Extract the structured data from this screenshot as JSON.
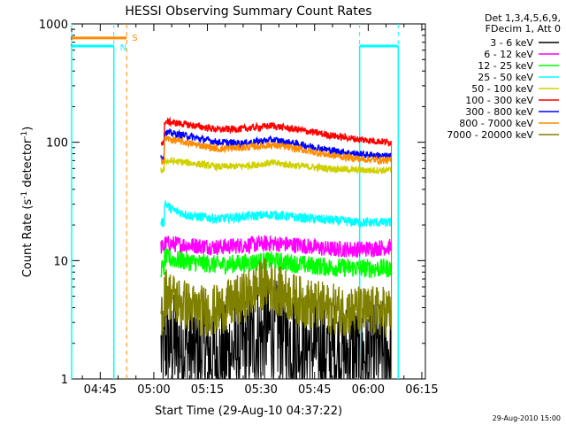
{
  "chart_data": {
    "type": "line",
    "title": "HESSI Observing Summary Count Rates",
    "xlabel": "Start Time (29-Aug-10 04:37:22)",
    "ylabel_main": "Count Rate (s",
    "ylabel_sup1": "-1",
    "ylabel_mid": " detector",
    "ylabel_sup2": "-1",
    "ylabel_end": ")",
    "x_range_min": [
      277,
      376
    ],
    "y_range": [
      1,
      1000
    ],
    "y_scale": "log",
    "x_ticks": [
      {
        "min": 285,
        "label": "04:45"
      },
      {
        "min": 300,
        "label": "05:00"
      },
      {
        "min": 315,
        "label": "05:15"
      },
      {
        "min": 330,
        "label": "05:30"
      },
      {
        "min": 345,
        "label": "05:45"
      },
      {
        "min": 360,
        "label": "06:00"
      },
      {
        "min": 375,
        "label": "06:15"
      }
    ],
    "y_ticks": [
      {
        "value": 1,
        "label": "1"
      },
      {
        "value": 10,
        "label": "10"
      },
      {
        "value": 100,
        "label": "100"
      },
      {
        "value": 1000,
        "label": "1000"
      }
    ],
    "legend": {
      "placement": "right",
      "header": [
        "Det 1,3,4,5,6,9,",
        "FDecim 1, Att 0"
      ]
    },
    "data_window_min": [
      302,
      366.5
    ],
    "series": [
      {
        "name": "3 - 6 keV",
        "color": "#000000",
        "points": [
          [
            303,
            2.0
          ],
          [
            310,
            1.8
          ],
          [
            318,
            1.5
          ],
          [
            325,
            1.9
          ],
          [
            333,
            2.6
          ],
          [
            341,
            2.0
          ],
          [
            349,
            1.7
          ],
          [
            358,
            1.6
          ],
          [
            366,
            1.7
          ]
        ],
        "noise": 0.45
      },
      {
        "name": "6 - 12 keV",
        "color": "#ff00ff",
        "points": [
          [
            303,
            14
          ],
          [
            310,
            13.5
          ],
          [
            318,
            13
          ],
          [
            325,
            13.5
          ],
          [
            333,
            14
          ],
          [
            341,
            13.5
          ],
          [
            349,
            12.5
          ],
          [
            358,
            12.5
          ],
          [
            366,
            13
          ]
        ],
        "noise": 0.07
      },
      {
        "name": "12 - 25 keV",
        "color": "#00ff00",
        "points": [
          [
            303,
            10.5
          ],
          [
            310,
            9.8
          ],
          [
            318,
            9.2
          ],
          [
            325,
            9.5
          ],
          [
            333,
            10
          ],
          [
            341,
            9.3
          ],
          [
            349,
            8.8
          ],
          [
            358,
            8.6
          ],
          [
            366,
            8.6
          ]
        ],
        "noise": 0.08
      },
      {
        "name": "25 - 50 keV",
        "color": "#00ffff",
        "points": [
          [
            303,
            31
          ],
          [
            305,
            27
          ],
          [
            310,
            24
          ],
          [
            318,
            22.5
          ],
          [
            325,
            23.5
          ],
          [
            333,
            24.5
          ],
          [
            341,
            23
          ],
          [
            349,
            22
          ],
          [
            358,
            21
          ],
          [
            366,
            21
          ]
        ],
        "noise": 0.04
      },
      {
        "name": "50 - 100 keV",
        "color": "#d0d000",
        "points": [
          [
            303,
            70
          ],
          [
            310,
            67
          ],
          [
            318,
            62
          ],
          [
            325,
            63
          ],
          [
            333,
            67
          ],
          [
            341,
            63
          ],
          [
            349,
            60
          ],
          [
            358,
            58
          ],
          [
            366,
            58
          ]
        ],
        "noise": 0.03
      },
      {
        "name": "100 - 300 keV",
        "color": "#ff0000",
        "points": [
          [
            303,
            150
          ],
          [
            310,
            140
          ],
          [
            318,
            128
          ],
          [
            325,
            130
          ],
          [
            333,
            138
          ],
          [
            341,
            127
          ],
          [
            349,
            115
          ],
          [
            358,
            105
          ],
          [
            366,
            100
          ]
        ],
        "noise": 0.03
      },
      {
        "name": "300 - 800 keV",
        "color": "#0000ff",
        "points": [
          [
            303,
            122
          ],
          [
            310,
            112
          ],
          [
            318,
            100
          ],
          [
            325,
            98
          ],
          [
            333,
            105
          ],
          [
            341,
            96
          ],
          [
            349,
            86
          ],
          [
            358,
            79
          ],
          [
            366,
            76
          ]
        ],
        "noise": 0.03
      },
      {
        "name": "800 - 7000 keV",
        "color": "#ff8c00",
        "points": [
          [
            303,
            108
          ],
          [
            310,
            98
          ],
          [
            318,
            88
          ],
          [
            325,
            90
          ],
          [
            333,
            95
          ],
          [
            341,
            87
          ],
          [
            349,
            78
          ],
          [
            358,
            72
          ],
          [
            366,
            70
          ]
        ],
        "noise": 0.03
      },
      {
        "name": "7000 - 20000 keV",
        "color": "#808000",
        "points": [
          [
            303,
            5.5
          ],
          [
            307,
            4.5
          ],
          [
            312,
            3.8
          ],
          [
            318,
            3.8
          ],
          [
            325,
            4.8
          ],
          [
            331,
            6.5
          ],
          [
            336,
            5.3
          ],
          [
            341,
            4.5
          ],
          [
            349,
            3.9
          ],
          [
            358,
            3.7
          ],
          [
            366,
            3.7
          ]
        ],
        "noise": 0.22
      }
    ],
    "saa_level": 650,
    "night_level": 760,
    "saa_segments": [
      [
        277,
        288.8
      ],
      [
        357.6,
        368.4
      ]
    ],
    "night_segments": [
      [
        277,
        292.4
      ]
    ],
    "saa_lines": [
      277,
      288.8,
      357.6,
      368.4
    ],
    "night_lines": [
      292.4
    ],
    "saa_label": "N",
    "night_label": "S",
    "saa_color": "#00ffff",
    "night_color": "#ff8c00",
    "timestamp": "29-Aug-2010 15:00"
  }
}
